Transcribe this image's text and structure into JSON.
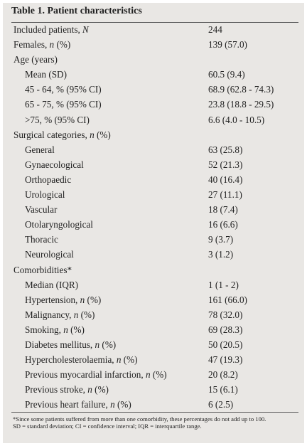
{
  "title": "Table 1. Patient characteristics",
  "rows": [
    {
      "label": [
        "Included patients, ",
        "N"
      ],
      "value": "244"
    },
    {
      "label": [
        "Females, ",
        "n",
        " (%)"
      ],
      "value": "139 (57.0)"
    },
    {
      "label": [
        "Age (years)"
      ],
      "items": [
        {
          "label": [
            "Mean (SD)"
          ],
          "value": "60.5 (9.4)"
        },
        {
          "label": [
            "45 - 64, % (95% CI)"
          ],
          "value": "68.9 (62.8 - 74.3)"
        },
        {
          "label": [
            "65 - 75, % (95% CI)"
          ],
          "value": "23.8 (18.8 - 29.5)"
        },
        {
          "label": [
            ">75, % (95% CI)"
          ],
          "value": "6.6 (4.0 - 10.5)"
        }
      ]
    },
    {
      "label": [
        "Surgical categories, ",
        "n",
        " (%)"
      ],
      "items": [
        {
          "label": [
            "General"
          ],
          "value": "63 (25.8)"
        },
        {
          "label": [
            "Gynaecological"
          ],
          "value": "52 (21.3)"
        },
        {
          "label": [
            "Orthopaedic"
          ],
          "value": "40 (16.4)"
        },
        {
          "label": [
            "Urological"
          ],
          "value": "27 (11.1)"
        },
        {
          "label": [
            "Vascular"
          ],
          "value": "18 (7.4)"
        },
        {
          "label": [
            "Otolaryngological"
          ],
          "value": "16 (6.6)"
        },
        {
          "label": [
            "Thoracic"
          ],
          "value": "9 (3.7)"
        },
        {
          "label": [
            "Neurological"
          ],
          "value": "3 (1.2)"
        }
      ]
    },
    {
      "label": [
        "Comorbidities*"
      ],
      "items": [
        {
          "label": [
            "Median (IQR)"
          ],
          "value": "1 (1 - 2)"
        },
        {
          "label": [
            "Hypertension, ",
            "n",
            " (%)"
          ],
          "value": "161 (66.0)"
        },
        {
          "label": [
            "Malignancy, ",
            "n",
            " (%)"
          ],
          "value": "78 (32.0)"
        },
        {
          "label": [
            "Smoking, ",
            "n",
            " (%)"
          ],
          "value": "69 (28.3)"
        },
        {
          "label": [
            "Diabetes mellitus, ",
            "n",
            " (%)"
          ],
          "value": "50 (20.5)"
        },
        {
          "label": [
            "Hypercholesterolaemia, ",
            "n",
            " (%)"
          ],
          "value": "47 (19.3)"
        },
        {
          "label": [
            "Previous myocardial infarction, ",
            "n",
            " (%)"
          ],
          "value": "20 (8.2)"
        },
        {
          "label": [
            "Previous stroke, ",
            "n",
            " (%)"
          ],
          "value": "15 (6.1)"
        },
        {
          "label": [
            "Previous heart failure, ",
            "n",
            " (%)"
          ],
          "value": "6 (2.5)"
        }
      ]
    }
  ],
  "footnotes": [
    "*Since some patients suffered from more than one comorbidity, these percentages do not add up to 100.",
    "SD = standard deviation; CI = confidence interval; IQR = interquartile range."
  ]
}
